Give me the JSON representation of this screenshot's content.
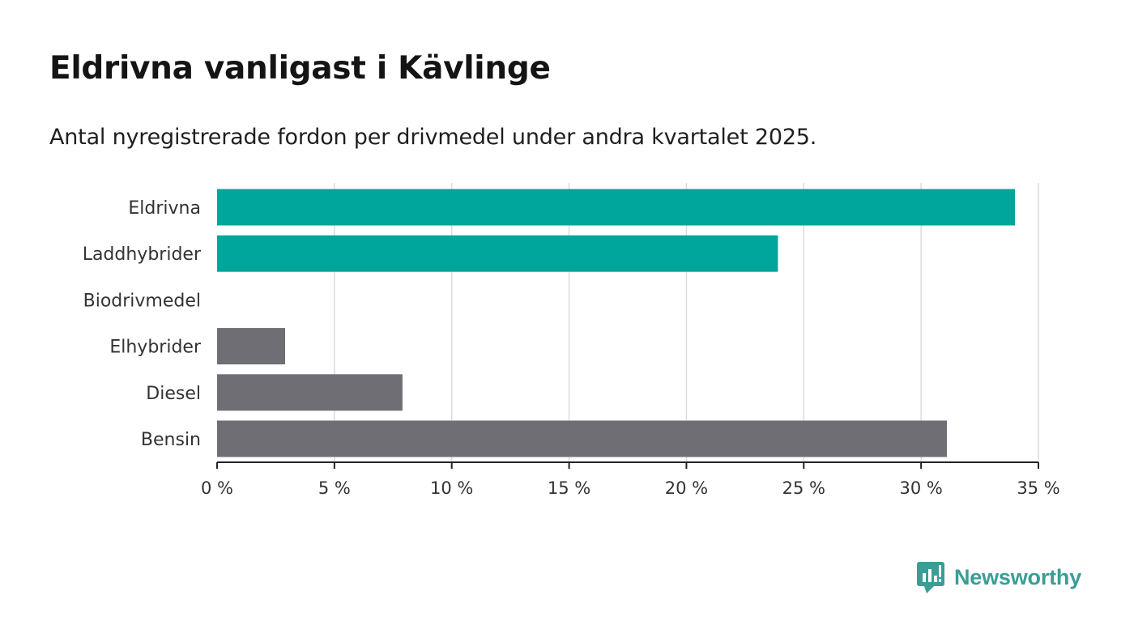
{
  "title": "Eldrivna vanligast i Kävlinge",
  "subtitle": "Antal nyregistrerade fordon per drivmedel under andra kvartalet 2025.",
  "brand": {
    "name": "Newsworthy",
    "color": "#3a9e96",
    "icon": "newsworthy-logo-icon"
  },
  "chart_data": {
    "type": "bar",
    "orientation": "horizontal",
    "categories": [
      "Eldrivna",
      "Laddhybrider",
      "Biodrivmedel",
      "Elhybrider",
      "Diesel",
      "Bensin"
    ],
    "values": [
      34.0,
      23.9,
      0,
      2.9,
      7.9,
      31.1
    ],
    "colors": [
      "#00a59b",
      "#00a59b",
      "#00a59b",
      "#6f6e75",
      "#6f6e75",
      "#6f6e75"
    ],
    "xlim": [
      0,
      35
    ],
    "ticks": [
      0,
      5,
      10,
      15,
      20,
      25,
      30,
      35
    ],
    "tick_labels": [
      "0 %",
      "5 %",
      "10 %",
      "15 %",
      "20 %",
      "25 %",
      "30 %",
      "35 %"
    ],
    "grid": true
  }
}
